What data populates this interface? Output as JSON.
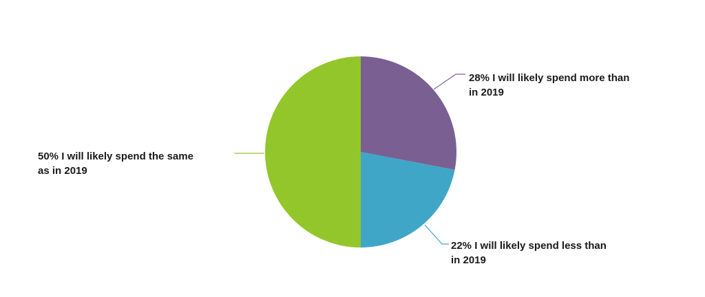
{
  "chart_data": {
    "type": "pie",
    "title": "",
    "slices": [
      {
        "label": "I will likely spend more than in 2019",
        "value": 28,
        "display": [
          "28% I will likely spend more than",
          "in 2019"
        ],
        "color": "#7a5f92"
      },
      {
        "label": "I will likely spend less than in 2019",
        "value": 22,
        "display": [
          "22% I will likely spend less than",
          "in 2019"
        ],
        "color": "#40a6c8"
      },
      {
        "label": "I will likely spend the same as in 2019",
        "value": 50,
        "display": [
          "50% I will likely spend the same",
          "as in 2019"
        ],
        "color": "#93c62a"
      }
    ],
    "start": "top",
    "direction": "clockwise",
    "legend": "none"
  }
}
